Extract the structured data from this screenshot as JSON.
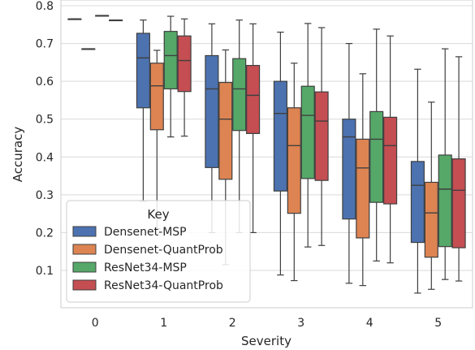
{
  "chart_data": {
    "type": "box",
    "xlabel": "Severity",
    "ylabel": "Accuracy",
    "categories": [
      "0",
      "1",
      "2",
      "3",
      "4",
      "5"
    ],
    "ylim": [
      0.0,
      0.8
    ],
    "yticks": [
      "0.1",
      "0.2",
      "0.3",
      "0.4",
      "0.5",
      "0.6",
      "0.7",
      "0.8"
    ],
    "ytick_values": [
      0.1,
      0.2,
      0.3,
      0.4,
      0.5,
      0.6,
      0.7,
      0.8
    ],
    "grid": true,
    "legend": {
      "title": "Key",
      "placement": "lower-left"
    },
    "series": [
      {
        "name": "Densenet-MSP",
        "color": "#4c72b0",
        "boxes": [
          {
            "category": "0",
            "whisker_low": 0.765,
            "q1": 0.765,
            "median": 0.765,
            "q3": 0.765,
            "whisker_high": 0.765
          },
          {
            "category": "1",
            "whisker_low": 0.283,
            "q1": 0.53,
            "median": 0.662,
            "q3": 0.727,
            "whisker_high": 0.762
          },
          {
            "category": "2",
            "whisker_low": 0.2,
            "q1": 0.372,
            "median": 0.58,
            "q3": 0.668,
            "whisker_high": 0.752
          },
          {
            "category": "3",
            "whisker_low": 0.088,
            "q1": 0.31,
            "median": 0.515,
            "q3": 0.6,
            "whisker_high": 0.73
          },
          {
            "category": "4",
            "whisker_low": 0.066,
            "q1": 0.236,
            "median": 0.453,
            "q3": 0.5,
            "whisker_high": 0.7
          },
          {
            "category": "5",
            "whisker_low": 0.04,
            "q1": 0.174,
            "median": 0.325,
            "q3": 0.388,
            "whisker_high": 0.632
          }
        ]
      },
      {
        "name": "Densenet-QuantProb",
        "color": "#dd8452",
        "boxes": [
          {
            "category": "0",
            "whisker_low": 0.686,
            "q1": 0.686,
            "median": 0.686,
            "q3": 0.686,
            "whisker_high": 0.686
          },
          {
            "category": "1",
            "whisker_low": 0.21,
            "q1": 0.472,
            "median": 0.588,
            "q3": 0.648,
            "whisker_high": 0.682
          },
          {
            "category": "2",
            "whisker_low": 0.115,
            "q1": 0.341,
            "median": 0.5,
            "q3": 0.597,
            "whisker_high": 0.683
          },
          {
            "category": "3",
            "whisker_low": 0.073,
            "q1": 0.251,
            "median": 0.43,
            "q3": 0.53,
            "whisker_high": 0.648
          },
          {
            "category": "4",
            "whisker_low": 0.06,
            "q1": 0.186,
            "median": 0.371,
            "q3": 0.447,
            "whisker_high": 0.62
          },
          {
            "category": "5",
            "whisker_low": 0.05,
            "q1": 0.135,
            "median": 0.252,
            "q3": 0.333,
            "whisker_high": 0.545
          }
        ]
      },
      {
        "name": "ResNet34-MSP",
        "color": "#55a868",
        "boxes": [
          {
            "category": "0",
            "whisker_low": 0.774,
            "q1": 0.774,
            "median": 0.774,
            "q3": 0.774,
            "whisker_high": 0.774
          },
          {
            "category": "1",
            "whisker_low": 0.453,
            "q1": 0.58,
            "median": 0.668,
            "q3": 0.732,
            "whisker_high": 0.772
          },
          {
            "category": "2",
            "whisker_low": 0.2,
            "q1": 0.47,
            "median": 0.58,
            "q3": 0.66,
            "whisker_high": 0.762
          },
          {
            "category": "3",
            "whisker_low": 0.162,
            "q1": 0.343,
            "median": 0.51,
            "q3": 0.587,
            "whisker_high": 0.753
          },
          {
            "category": "4",
            "whisker_low": 0.125,
            "q1": 0.28,
            "median": 0.447,
            "q3": 0.52,
            "whisker_high": 0.738
          },
          {
            "category": "5",
            "whisker_low": 0.076,
            "q1": 0.163,
            "median": 0.315,
            "q3": 0.405,
            "whisker_high": 0.686
          }
        ]
      },
      {
        "name": "ResNet34-QuantProb",
        "color": "#c44e52",
        "boxes": [
          {
            "category": "0",
            "whisker_low": 0.762,
            "q1": 0.762,
            "median": 0.762,
            "q3": 0.762,
            "whisker_high": 0.762
          },
          {
            "category": "1",
            "whisker_low": 0.455,
            "q1": 0.573,
            "median": 0.655,
            "q3": 0.72,
            "whisker_high": 0.765
          },
          {
            "category": "2",
            "whisker_low": 0.2,
            "q1": 0.462,
            "median": 0.563,
            "q3": 0.642,
            "whisker_high": 0.752
          },
          {
            "category": "3",
            "whisker_low": 0.166,
            "q1": 0.338,
            "median": 0.495,
            "q3": 0.572,
            "whisker_high": 0.742
          },
          {
            "category": "4",
            "whisker_low": 0.12,
            "q1": 0.276,
            "median": 0.43,
            "q3": 0.505,
            "whisker_high": 0.72
          },
          {
            "category": "5",
            "whisker_low": 0.072,
            "q1": 0.16,
            "median": 0.312,
            "q3": 0.395,
            "whisker_high": 0.665
          }
        ]
      }
    ]
  }
}
